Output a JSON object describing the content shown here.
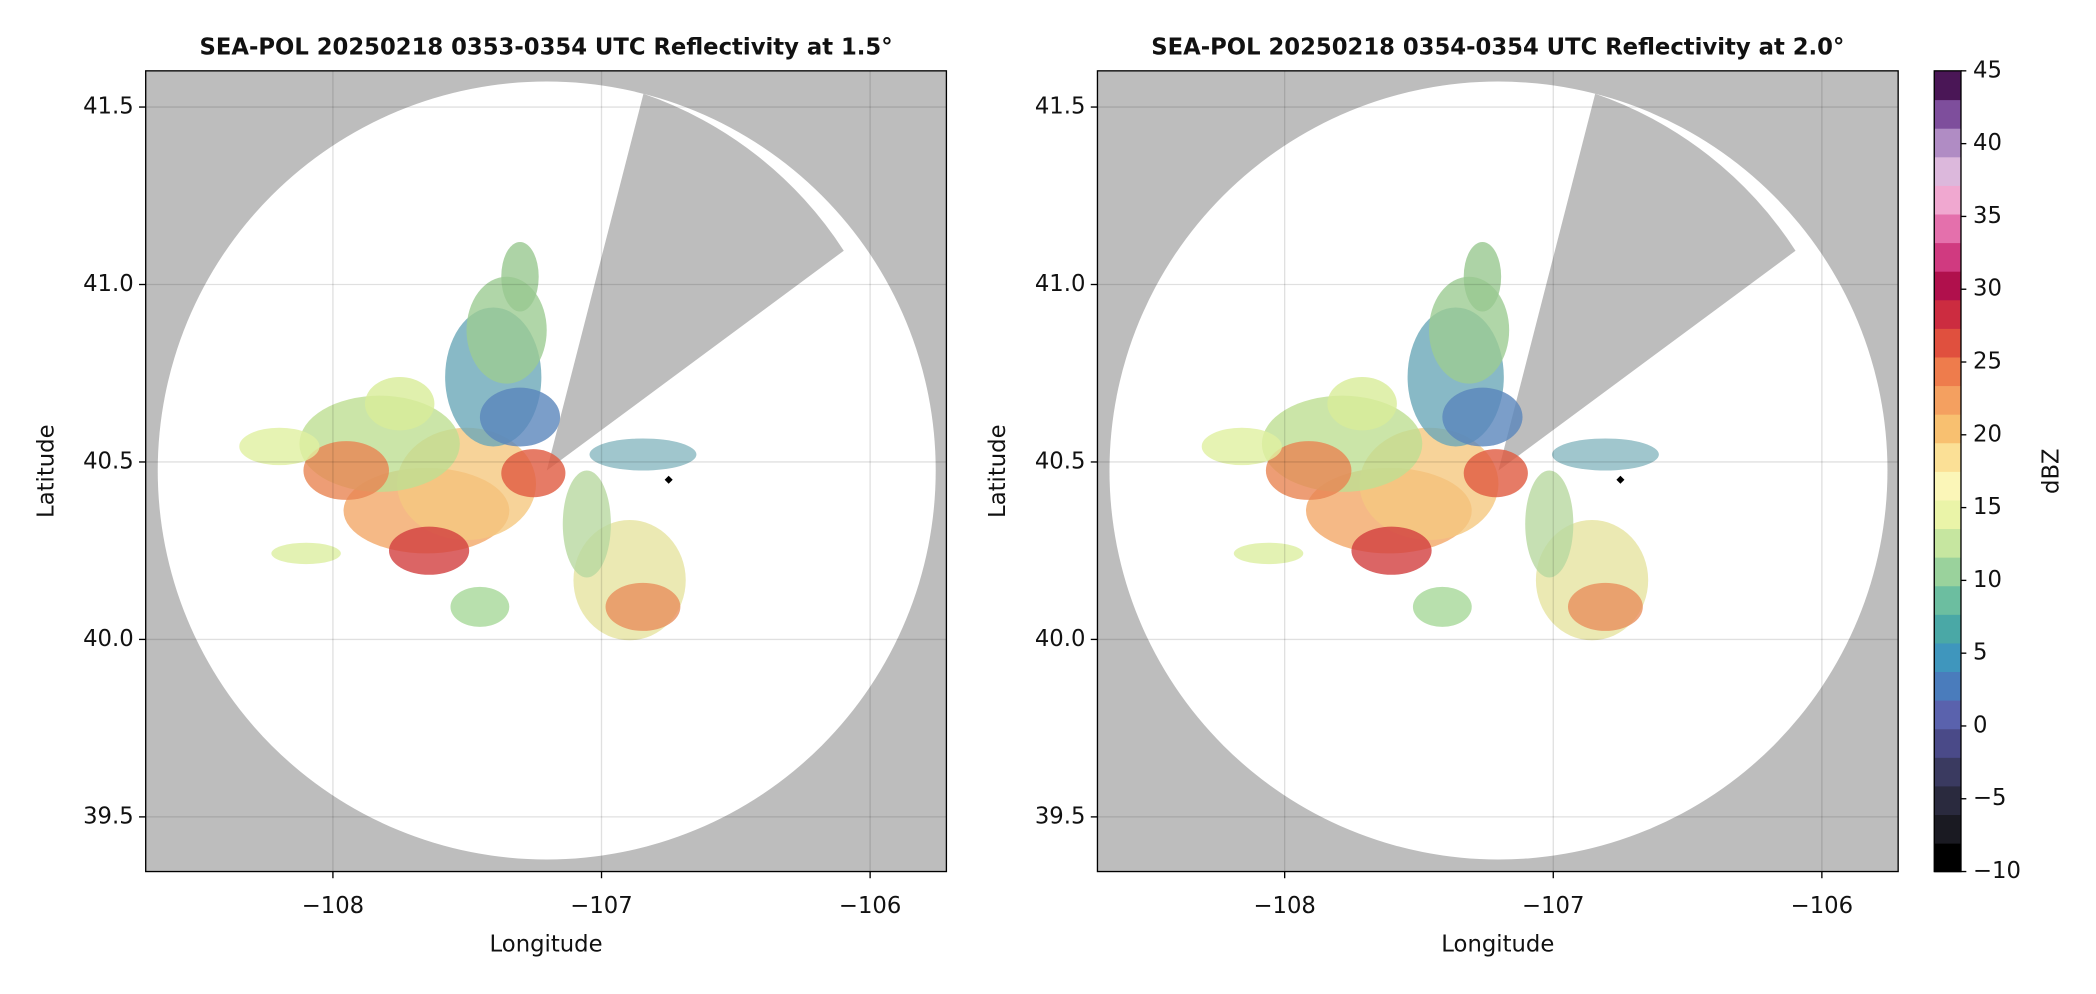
{
  "chart_data": [
    {
      "type": "radar-ppi",
      "title": "SEA-POL 20250218 0353-0354 UTC Reflectivity at 1.5°",
      "x_label": "Longitude",
      "y_label": "Latitude",
      "xlim": [
        -108.697,
        -105.716
      ],
      "ylim": [
        39.346,
        41.602
      ],
      "xticks": [
        {
          "value": -108,
          "label": "−108"
        },
        {
          "value": -107,
          "label": "−107"
        },
        {
          "value": -106,
          "label": "−106"
        }
      ],
      "yticks": [
        39.5,
        {
          "value": 40.0,
          "label": "40.0"
        },
        40.5,
        {
          "value": 41.0,
          "label": "41.0"
        },
        41.5
      ],
      "grid": true
    },
    {
      "type": "radar-ppi",
      "title": "SEA-POL 20250218 0354-0354 UTC Reflectivity at 2.0°",
      "x_label": "Longitude",
      "y_label": "Latitude",
      "xlim": [
        -108.697,
        -105.716
      ],
      "ylim": [
        39.346,
        41.602
      ],
      "xticks": [
        {
          "value": -108,
          "label": "−108"
        },
        {
          "value": -107,
          "label": "−107"
        },
        {
          "value": -106,
          "label": "−106"
        }
      ],
      "yticks": [
        39.5,
        {
          "value": 40.0,
          "label": "40.0"
        },
        40.5,
        {
          "value": 41.0,
          "label": "41.0"
        },
        41.5
      ],
      "grid": true,
      "colorbar": {
        "label": "dBZ",
        "lim": [
          -10,
          45
        ],
        "ticks": [
          {
            "value": -10,
            "label": "−10"
          },
          {
            "value": -5,
            "label": "−5"
          },
          0,
          5,
          10,
          15,
          20,
          25,
          30,
          35,
          40,
          45
        ],
        "colors": [
          "#000000",
          "#1a1a22",
          "#2a2a3e",
          "#3a3a60",
          "#4a4a88",
          "#5a62ad",
          "#4a7cbc",
          "#3f96bd",
          "#4aa8a6",
          "#6cbea0",
          "#9ad29c",
          "#c6e6a0",
          "#eaf4a8",
          "#fbf6b8",
          "#fbe096",
          "#f8c070",
          "#f4a060",
          "#ee7c4c",
          "#e0503e",
          "#cc2c40",
          "#b0104c",
          "#d03a80",
          "#e470ac",
          "#f0a8d0",
          "#dcb8dc",
          "#b08cc4",
          "#7e4e9c",
          "#4a1656"
        ]
      }
    }
  ]
}
